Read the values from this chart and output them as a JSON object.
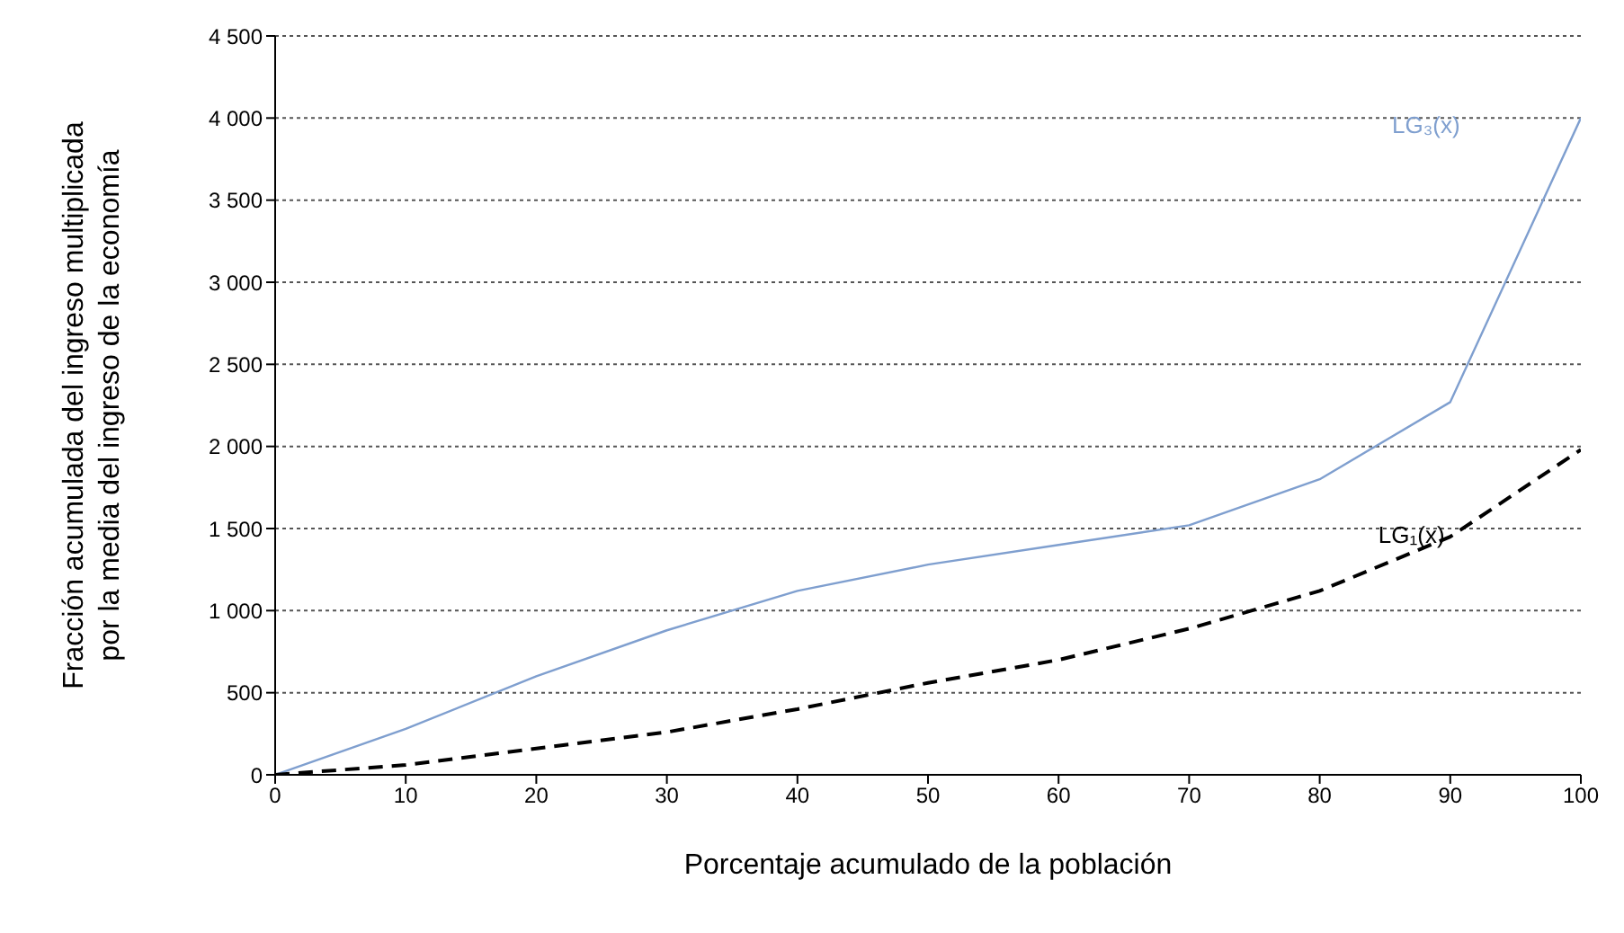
{
  "chart_data": {
    "type": "line",
    "xlabel": "Porcentaje acumulado de la población",
    "ylabel": "Fracción acumulada del ingreso multiplicada por la media del ingreso de la economía",
    "x": [
      0,
      10,
      20,
      30,
      40,
      50,
      60,
      70,
      80,
      90,
      100
    ],
    "series": [
      {
        "name": "LG₃(x)",
        "color": "#7f9fcf",
        "line_style": "solid",
        "values": [
          0,
          280,
          600,
          880,
          1120,
          1280,
          1400,
          1520,
          1800,
          2270,
          4000
        ]
      },
      {
        "name": "LG₁(x)",
        "color": "#000000",
        "line_style": "dashed",
        "values": [
          0,
          60,
          160,
          260,
          400,
          560,
          700,
          890,
          1120,
          1450,
          1980
        ]
      }
    ],
    "xlim": [
      0,
      100
    ],
    "xticks": [
      0,
      10,
      20,
      30,
      40,
      50,
      60,
      70,
      80,
      90,
      100
    ],
    "ylim": [
      0,
      4500
    ],
    "yticks": [
      0,
      {
        "value": 500,
        "label": "500"
      },
      {
        "value": 1000,
        "label": "1 000"
      },
      {
        "value": 1500,
        "label": "1 500"
      },
      {
        "value": 2000,
        "label": "2 000"
      },
      {
        "value": 2500,
        "label": "2 500"
      },
      {
        "value": 3000,
        "label": "3 000"
      },
      {
        "value": 3500,
        "label": "3 500"
      },
      {
        "value": 4000,
        "label": "4 000"
      },
      {
        "value": 4500,
        "label": "4 500"
      }
    ],
    "grid": "y",
    "legend": false,
    "marker": "none"
  }
}
